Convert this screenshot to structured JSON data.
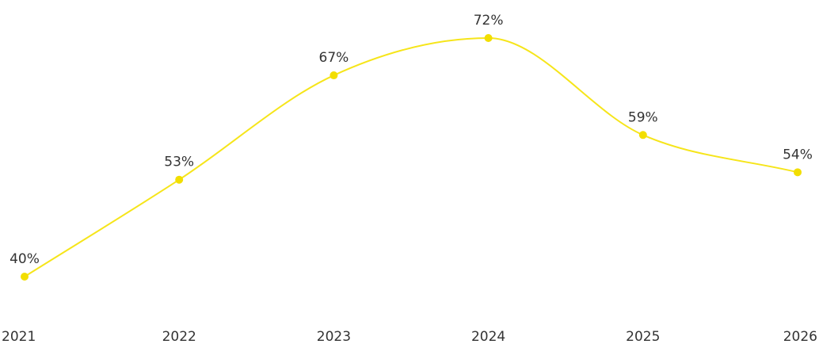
{
  "chart_data": {
    "type": "line",
    "categories": [
      "2021",
      "2022",
      "2023",
      "2024",
      "2025",
      "2026"
    ],
    "series": [
      {
        "values": [
          40,
          53,
          67,
          72,
          59,
          54
        ],
        "data_labels": [
          "40%",
          "53%",
          "67%",
          "72%",
          "59%",
          "54%"
        ]
      }
    ],
    "ylim": [
      30,
      80
    ],
    "grid": false,
    "legend": "none",
    "line_color": "#f6e51a",
    "marker_color": "#f2de00",
    "label_color": "#333333"
  }
}
